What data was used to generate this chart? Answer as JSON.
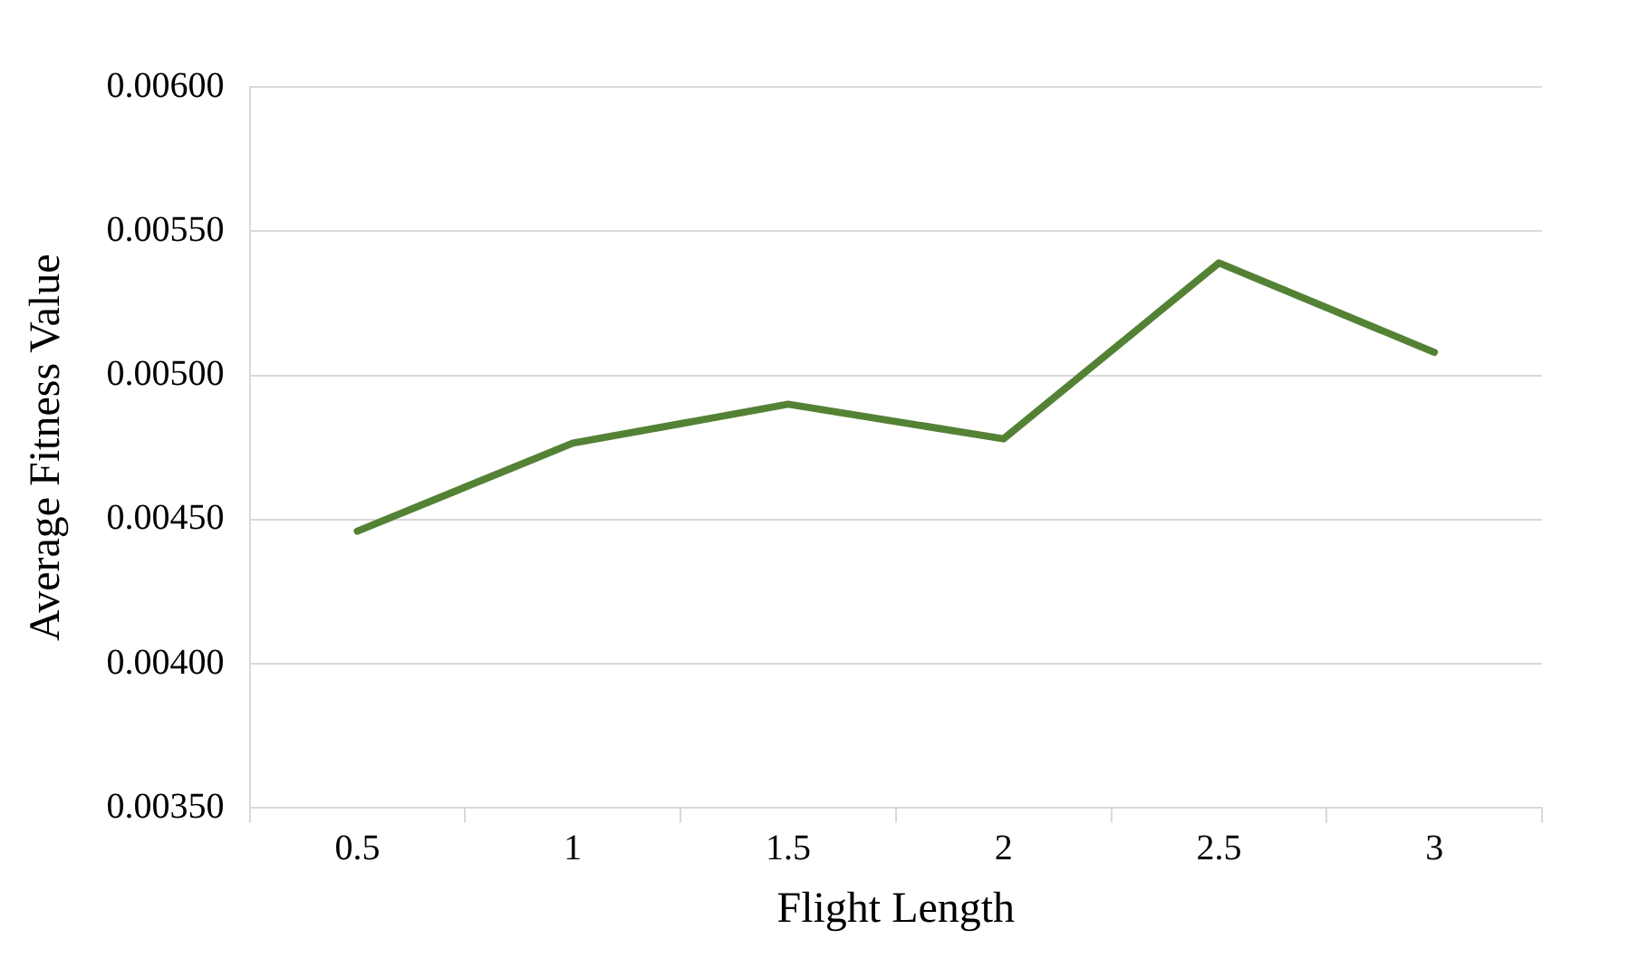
{
  "chart_data": {
    "type": "line",
    "xlabel": "Flight Length",
    "ylabel": "Average Fitness Value",
    "categories": [
      "0.5",
      "1",
      "1.5",
      "2",
      "2.5",
      "3"
    ],
    "series": [
      {
        "color": "#548235",
        "values": [
          0.00446,
          0.004765,
          0.0049,
          0.00478,
          0.00539,
          0.00508
        ]
      }
    ],
    "ylim": [
      0.0035,
      0.006
    ],
    "yticks": [
      {
        "value": 0.0035,
        "label": "0.00350"
      },
      {
        "value": 0.004,
        "label": "0.00400"
      },
      {
        "value": 0.0045,
        "label": "0.00450"
      },
      {
        "value": 0.005,
        "label": "0.00500"
      },
      {
        "value": 0.0055,
        "label": "0.00550"
      },
      {
        "value": 0.006,
        "label": "0.00600"
      }
    ],
    "grid": "y",
    "legend": false,
    "marker": "none",
    "line_style": "solid"
  }
}
